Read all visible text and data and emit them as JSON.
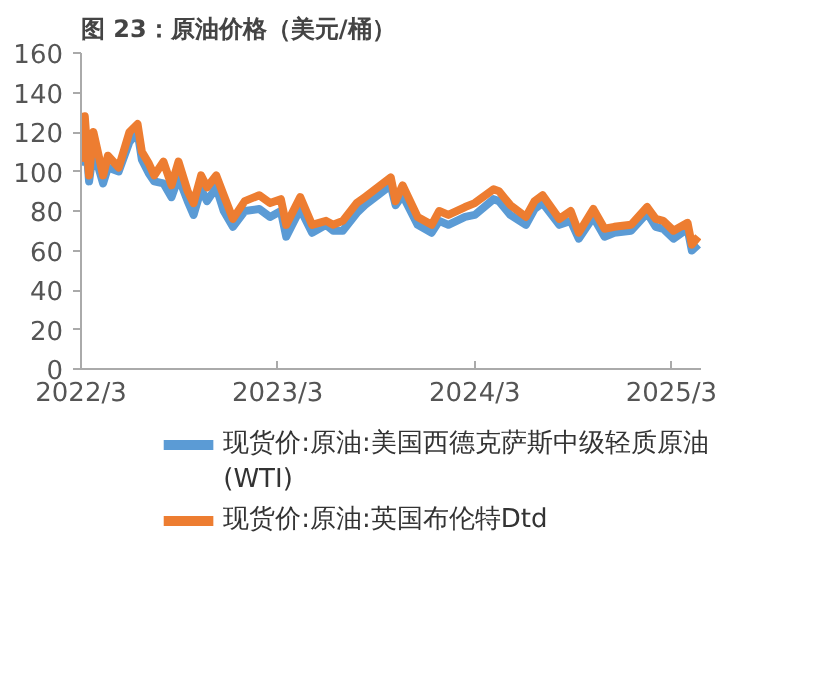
{
  "chart_data": {
    "type": "line",
    "title": "图 23：原油价格（美元/桶）",
    "x": [
      "2022-03-01",
      "2022-03-08",
      "2022-03-16",
      "2022-03-24",
      "2022-04-11",
      "2022-04-20",
      "2022-05-10",
      "2022-05-30",
      "2022-06-14",
      "2022-06-22",
      "2022-07-05",
      "2022-07-15",
      "2022-08-01",
      "2022-08-16",
      "2022-08-29",
      "2022-09-15",
      "2022-09-26",
      "2022-10-10",
      "2022-10-21",
      "2022-11-07",
      "2022-11-21",
      "2022-12-08",
      "2022-12-30",
      "2023-01-26",
      "2023-02-15",
      "2023-03-07",
      "2023-03-17",
      "2023-04-12",
      "2023-05-04",
      "2023-05-30",
      "2023-06-12",
      "2023-06-30",
      "2023-07-26",
      "2023-08-10",
      "2023-09-27",
      "2023-10-06",
      "2023-10-19",
      "2023-11-16",
      "2023-12-12",
      "2023-12-26",
      "2024-01-12",
      "2024-02-12",
      "2024-03-01",
      "2024-04-05",
      "2024-04-15",
      "2024-05-06",
      "2024-06-04",
      "2024-06-20",
      "2024-07-05",
      "2024-08-05",
      "2024-08-26",
      "2024-09-10",
      "2024-10-07",
      "2024-10-28",
      "2024-11-15",
      "2024-12-16",
      "2025-01-15",
      "2025-01-31",
      "2025-02-14",
      "2025-03-05",
      "2025-03-31",
      "2025-04-08",
      "2025-04-20"
    ],
    "series": [
      {
        "name": "现货价:原油:美国西德克萨斯中级轻质原油(WTI)",
        "color": "#5b9bd5",
        "values": [
          103,
          123,
          95,
          111,
          94,
          102,
          100,
          115,
          120,
          106,
          99,
          95,
          94,
          87,
          97,
          85,
          78,
          91,
          85,
          92,
          80,
          72,
          80,
          81,
          77,
          80,
          67,
          81,
          69,
          73,
          70,
          70,
          79,
          83,
          93,
          83,
          88,
          73,
          69,
          75,
          73,
          77,
          78,
          86,
          85,
          78,
          73,
          81,
          84,
          73,
          75,
          66,
          77,
          67,
          69,
          70,
          79,
          72,
          71,
          66,
          71,
          60,
          63
        ]
      },
      {
        "name": "现货价:原油:英国布伦特Dtd",
        "color": "#ed7d31",
        "values": [
          105,
          128,
          98,
          120,
          98,
          108,
          102,
          120,
          124,
          110,
          104,
          98,
          105,
          93,
          105,
          90,
          84,
          98,
          92,
          98,
          88,
          76,
          85,
          88,
          84,
          86,
          73,
          87,
          73,
          75,
          73,
          75,
          84,
          87,
          97,
          85,
          93,
          77,
          73,
          80,
          78,
          82,
          84,
          91,
          90,
          83,
          77,
          85,
          88,
          76,
          80,
          69,
          81,
          71,
          72,
          73,
          82,
          76,
          75,
          70,
          74,
          63,
          67
        ]
      }
    ],
    "xlim": [
      "2022-03-01",
      "2025-04-25"
    ],
    "xticks": [
      {
        "value": "2022-03-01",
        "label": "2022/3"
      },
      {
        "value": "2023-03-01",
        "label": "2023/3"
      },
      {
        "value": "2024-03-01",
        "label": "2024/3"
      },
      {
        "value": "2025-03-01",
        "label": "2025/3"
      }
    ],
    "ylim": [
      0,
      160
    ],
    "yticks": [
      0,
      20,
      40,
      60,
      80,
      100,
      120,
      140,
      160
    ],
    "grid": false,
    "legend": "bottom",
    "line_style": "solid"
  }
}
